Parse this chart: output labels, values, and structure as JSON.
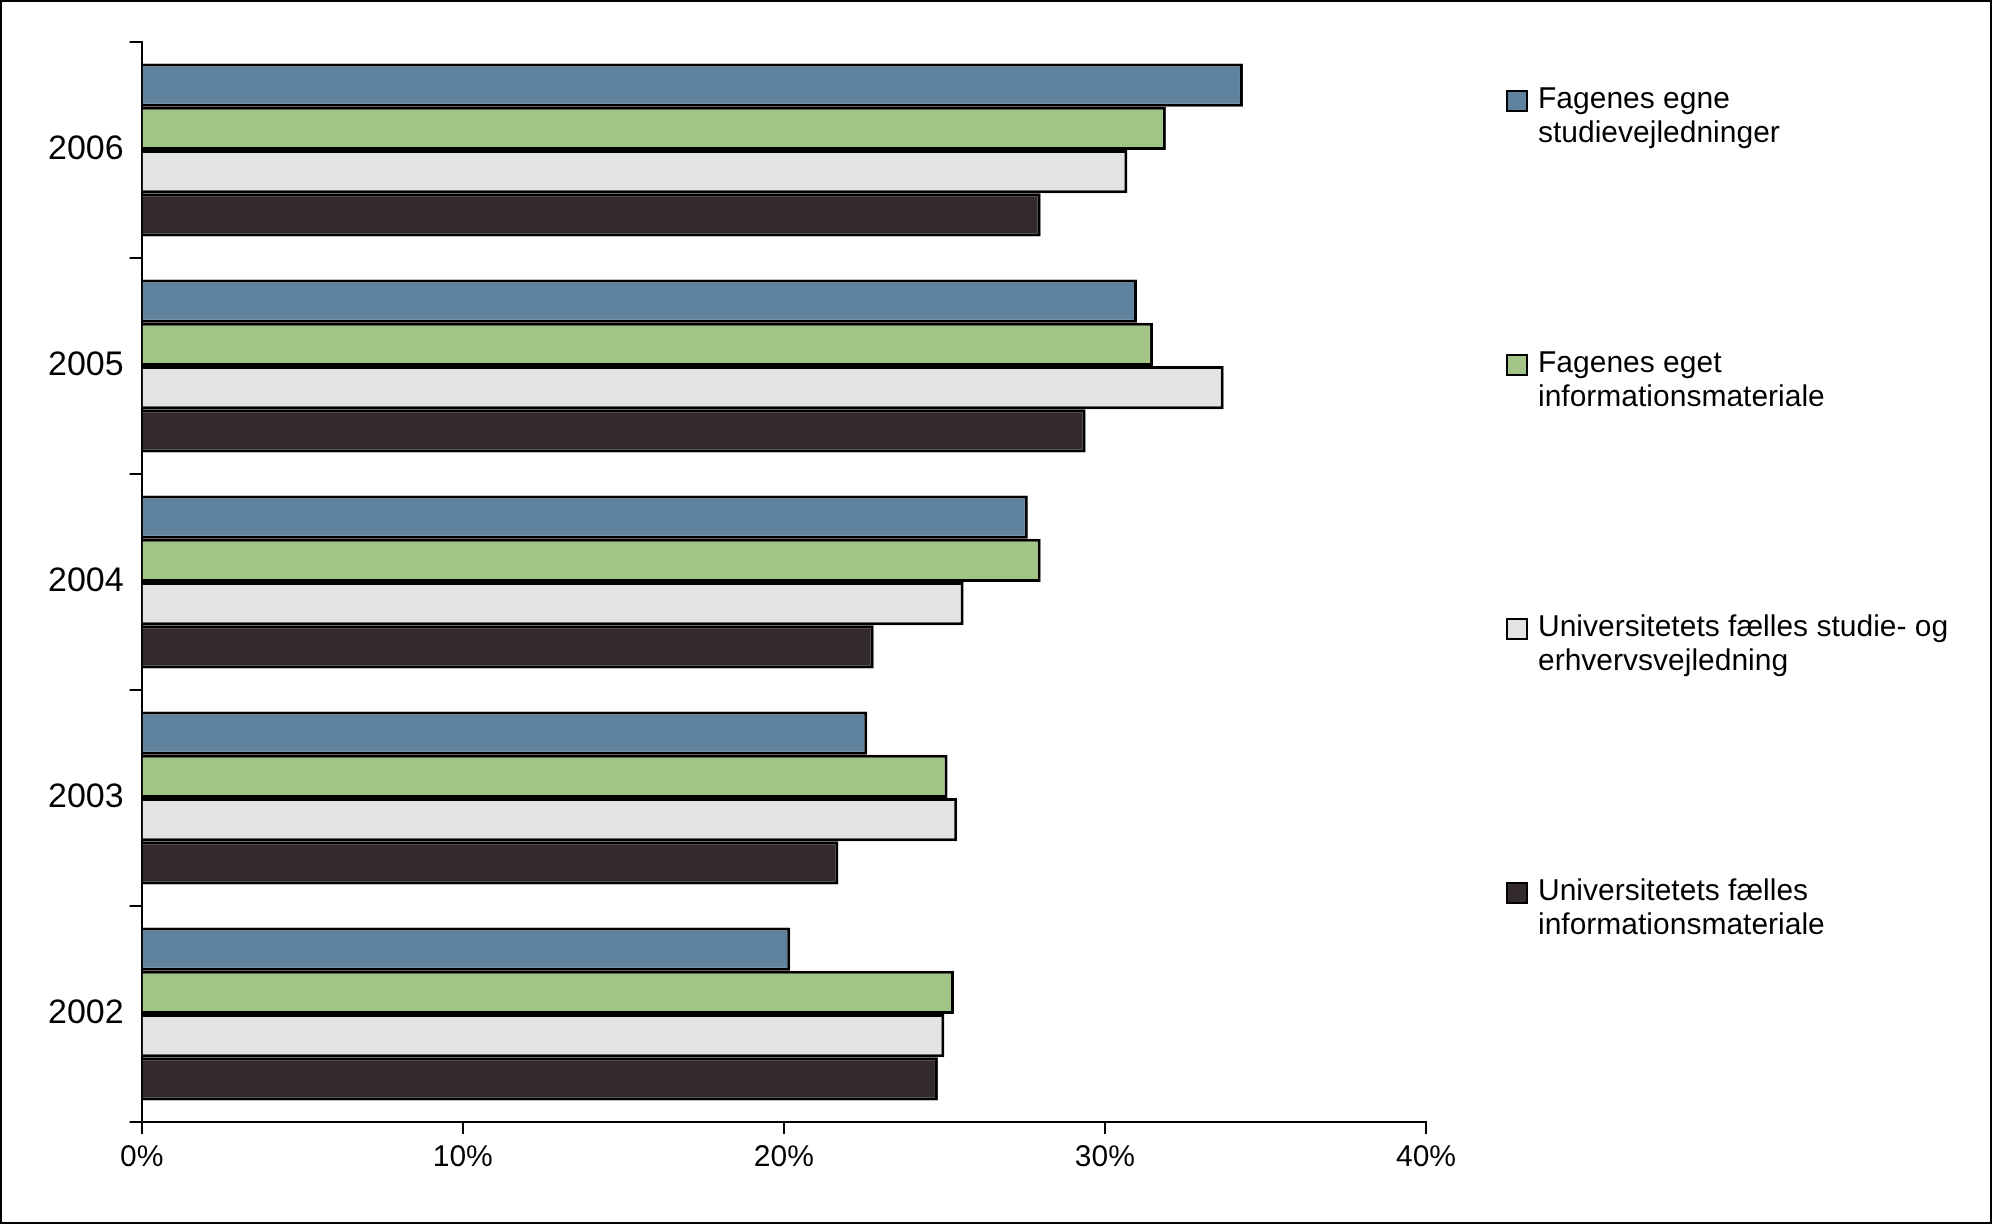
{
  "chart_data": {
    "type": "bar",
    "orientation": "horizontal",
    "categories": [
      "2006",
      "2005",
      "2004",
      "2003",
      "2002"
    ],
    "series": [
      {
        "name": "Fagenes egne studievejledninger",
        "color": "#5f829e",
        "values": [
          34.3,
          31.0,
          27.6,
          22.6,
          20.2
        ]
      },
      {
        "name": "Fagenes eget informationsmateriale",
        "color": "#a2c587",
        "values": [
          31.9,
          31.5,
          28.0,
          25.1,
          25.3
        ]
      },
      {
        "name": "Universitetets fælles studie- og erhvervsvejledning",
        "color": "#e3e3e3",
        "values": [
          30.7,
          33.7,
          25.6,
          25.4,
          25.0
        ]
      },
      {
        "name": "Universitetets fælles informationsmateriale",
        "color": "#332a2b",
        "values": [
          28.0,
          29.4,
          22.8,
          21.7,
          24.8
        ]
      }
    ],
    "xlim": [
      0,
      40
    ],
    "xticks": [
      {
        "value": 0,
        "label": "0%"
      },
      {
        "value": 10,
        "label": "10%"
      },
      {
        "value": 20,
        "label": "20%"
      },
      {
        "value": 30,
        "label": "30%"
      },
      {
        "value": 40,
        "label": "40%"
      }
    ],
    "grid": false,
    "legend": "right"
  }
}
